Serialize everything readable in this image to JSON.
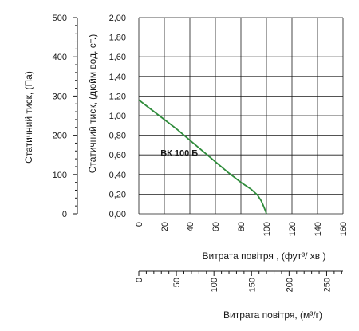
{
  "chart_data": {
    "type": "line",
    "title": "",
    "series": [
      {
        "name": "ВК 100 Б",
        "color": "#2e8b3a",
        "x": [
          0,
          10,
          20,
          30,
          40,
          50,
          60,
          70,
          80,
          88,
          93,
          96,
          98,
          99.5,
          100
        ],
        "y": [
          1.16,
          1.06,
          0.96,
          0.86,
          0.75,
          0.64,
          0.53,
          0.42,
          0.32,
          0.25,
          0.19,
          0.13,
          0.07,
          0.02,
          0.0
        ]
      }
    ],
    "axes": {
      "x_cfm": {
        "label": "Витрата повітря , (фут³/  хв )",
        "range": [
          0,
          160
        ],
        "ticks": [
          "0",
          "20",
          "40",
          "60",
          "80",
          "100",
          "120",
          "140",
          "160"
        ]
      },
      "x_m3h": {
        "label": "Витрата повітря, (м³/г)",
        "range": [
          0,
          271.8
        ],
        "ticks": [
          "0",
          "50",
          "100",
          "150",
          "200",
          "250"
        ]
      },
      "y_inwg": {
        "label": "Статичний тиск, (дюйм вод. ст.)",
        "range": [
          0,
          2.0
        ],
        "ticks": [
          "0,00",
          "0,20",
          "0,40",
          "0,60",
          "0,80",
          "1,00",
          "1,20",
          "1,40",
          "1,60",
          "1,80",
          "2,00"
        ]
      },
      "y_pa": {
        "label": "Статичний тиск, (Па)",
        "range": [
          0,
          500
        ],
        "ticks": [
          "0",
          "100",
          "200",
          "300",
          "400",
          "500"
        ]
      }
    },
    "grid": true
  }
}
